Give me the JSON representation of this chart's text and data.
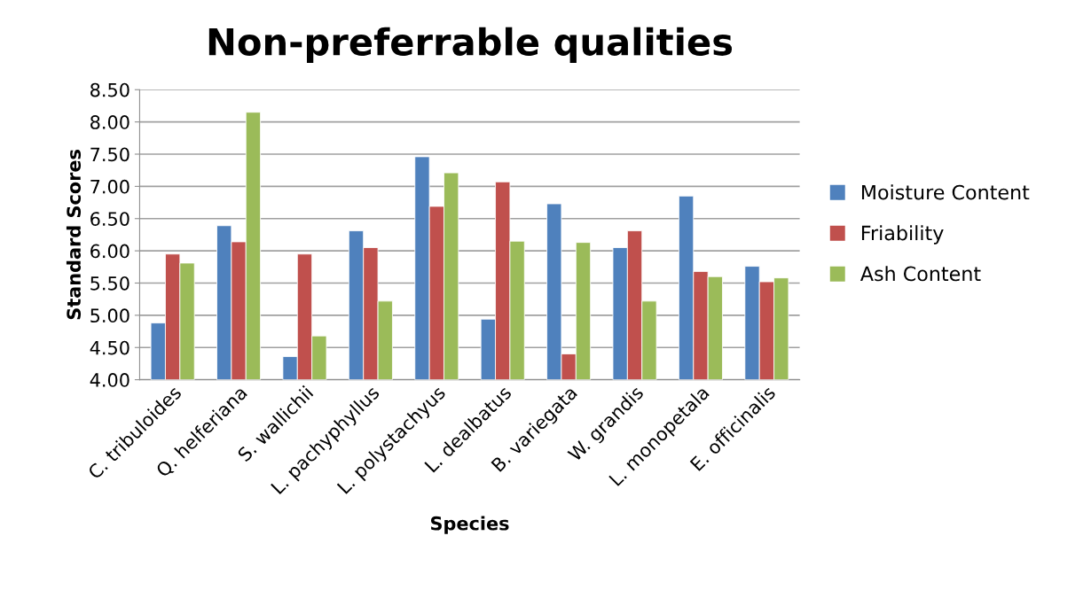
{
  "chart_data": {
    "type": "bar",
    "title": "Non-preferrable qualities",
    "xlabel": "Species",
    "ylabel": "Standard Scores",
    "categories": [
      "C. tribuloides",
      "Q. helferiana",
      "S. wallichii",
      "L. pachyphyllus",
      "L. polystachyus",
      "L. dealbatus",
      "B. variegata",
      "W. grandis",
      "L. monopetala",
      "E. officinalis"
    ],
    "series": [
      {
        "name": "Moisture Content",
        "color": "#4f81bd",
        "values": [
          4.88,
          6.39,
          4.36,
          6.31,
          7.46,
          4.94,
          6.73,
          6.05,
          6.85,
          5.76
        ]
      },
      {
        "name": "Friability",
        "color": "#c0504d",
        "values": [
          5.95,
          6.14,
          5.95,
          6.05,
          6.69,
          7.07,
          4.4,
          6.31,
          5.68,
          5.52
        ]
      },
      {
        "name": "Ash Content",
        "color": "#9bbb59",
        "values": [
          5.81,
          8.15,
          4.68,
          5.22,
          7.21,
          6.15,
          6.13,
          5.22,
          5.6,
          5.58
        ]
      }
    ],
    "ylim": [
      4.0,
      8.5
    ],
    "yticks": [
      {
        "value": 4.0,
        "label": "4.00"
      },
      {
        "value": 4.5,
        "label": "4.50"
      },
      {
        "value": 5.0,
        "label": "5.00"
      },
      {
        "value": 5.5,
        "label": "5.50"
      },
      {
        "value": 6.0,
        "label": "6.00"
      },
      {
        "value": 6.5,
        "label": "6.50"
      },
      {
        "value": 7.0,
        "label": "7.00"
      },
      {
        "value": 7.5,
        "label": "7.50"
      },
      {
        "value": 8.0,
        "label": "8.00"
      },
      {
        "value": 8.5,
        "label": "8.50"
      }
    ],
    "grid": "y",
    "legend": "right"
  }
}
